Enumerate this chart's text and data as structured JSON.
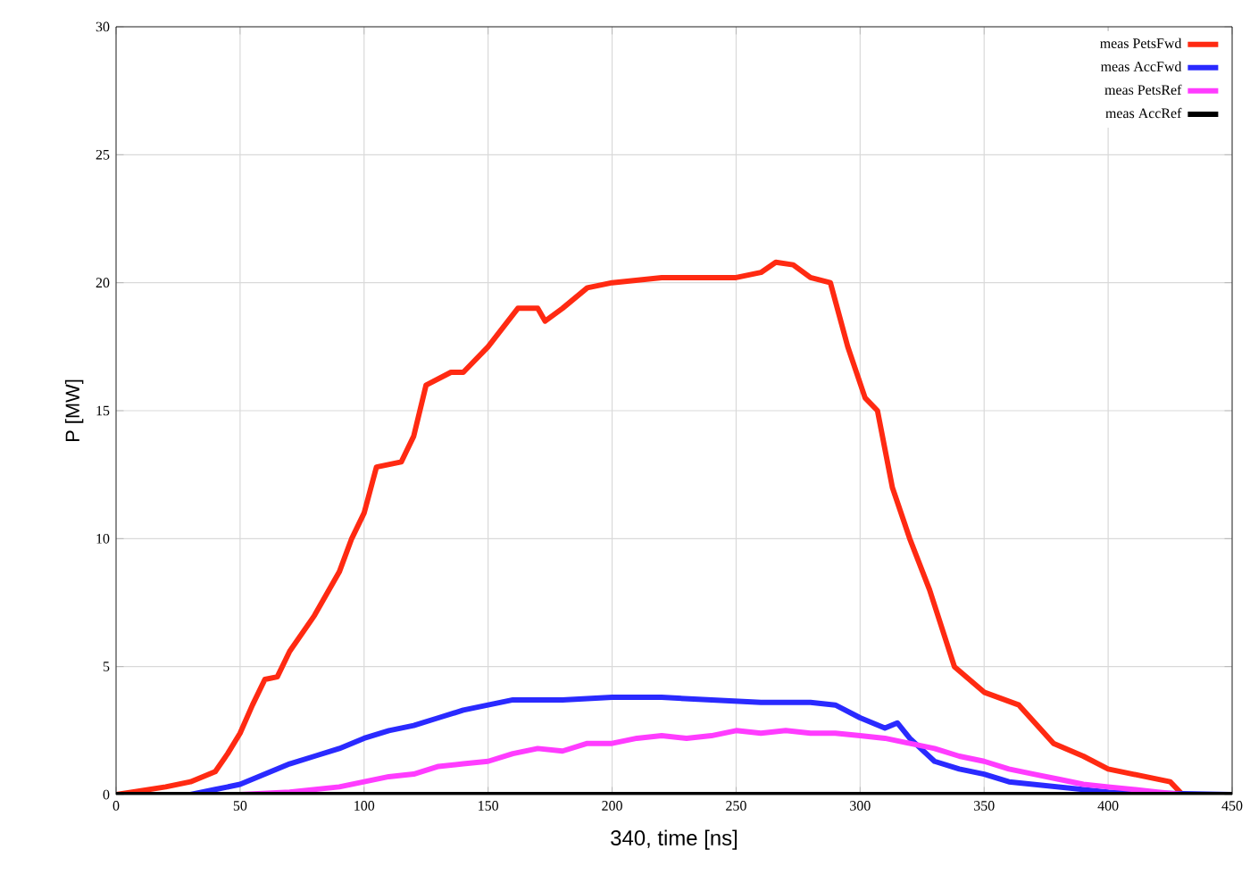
{
  "chart_data": {
    "type": "line",
    "xlabel": "340,    time [ns]",
    "ylabel": "P [MW]",
    "xlim": [
      0,
      450
    ],
    "ylim": [
      0,
      30
    ],
    "xticks": [
      0,
      50,
      100,
      150,
      200,
      250,
      300,
      350,
      400,
      450
    ],
    "yticks": [
      0,
      5,
      10,
      15,
      20,
      25,
      30
    ],
    "grid": true,
    "legend": "top right",
    "marker": "none",
    "line_style": "solid",
    "series": [
      {
        "name": "meas PetsFwd",
        "color": "#ff2a12",
        "x": [
          0,
          20,
          30,
          40,
          45,
          50,
          55,
          60,
          65,
          70,
          80,
          90,
          95,
          100,
          105,
          115,
          120,
          125,
          135,
          140,
          150,
          162,
          170,
          173,
          180,
          190,
          200,
          220,
          250,
          260,
          266,
          273,
          280,
          288,
          295,
          302,
          307,
          313,
          320,
          328,
          338,
          350,
          364,
          378,
          390,
          400,
          410,
          425,
          430
        ],
        "values": [
          0,
          0.3,
          0.5,
          0.9,
          1.6,
          2.4,
          3.5,
          4.5,
          4.6,
          5.6,
          7,
          8.7,
          10,
          11,
          12.8,
          13,
          14,
          16,
          16.5,
          16.5,
          17.5,
          19,
          19,
          18.5,
          19,
          19.8,
          20,
          20.2,
          20.2,
          20.4,
          20.8,
          20.7,
          20.2,
          20,
          17.5,
          15.5,
          15,
          12,
          10,
          8,
          5,
          4,
          3.5,
          2,
          1.5,
          1,
          0.8,
          0.5,
          0
        ]
      },
      {
        "name": "meas AccFwd",
        "color": "#2a2aff",
        "x": [
          30,
          40,
          50,
          60,
          70,
          80,
          90,
          100,
          110,
          120,
          130,
          140,
          150,
          160,
          180,
          200,
          220,
          240,
          260,
          280,
          290,
          300,
          310,
          315,
          320,
          330,
          340,
          350,
          360,
          380,
          400,
          420,
          450
        ],
        "values": [
          0,
          0.2,
          0.4,
          0.8,
          1.2,
          1.5,
          1.8,
          2.2,
          2.5,
          2.7,
          3,
          3.3,
          3.5,
          3.7,
          3.7,
          3.8,
          3.8,
          3.7,
          3.6,
          3.6,
          3.5,
          3,
          2.6,
          2.8,
          2.2,
          1.3,
          1,
          0.8,
          0.5,
          0.3,
          0.1,
          0.05,
          0
        ]
      },
      {
        "name": "meas PetsRef",
        "color": "#ff3cff",
        "x": [
          50,
          70,
          90,
          100,
          110,
          120,
          130,
          140,
          150,
          160,
          170,
          180,
          190,
          200,
          210,
          220,
          230,
          240,
          250,
          260,
          270,
          280,
          290,
          300,
          310,
          320,
          330,
          340,
          350,
          360,
          370,
          380,
          390,
          400,
          410,
          420,
          430
        ],
        "values": [
          0,
          0.1,
          0.3,
          0.5,
          0.7,
          0.8,
          1.1,
          1.2,
          1.3,
          1.6,
          1.8,
          1.7,
          2,
          2,
          2.2,
          2.3,
          2.2,
          2.3,
          2.5,
          2.4,
          2.5,
          2.4,
          2.4,
          2.3,
          2.2,
          2,
          1.8,
          1.5,
          1.3,
          1,
          0.8,
          0.6,
          0.4,
          0.3,
          0.2,
          0.1,
          0
        ]
      },
      {
        "name": "meas AccRef",
        "color": "#000000",
        "x": [
          0,
          100,
          200,
          300,
          400,
          450
        ],
        "values": [
          0,
          0,
          0,
          0,
          0,
          0
        ]
      }
    ]
  }
}
